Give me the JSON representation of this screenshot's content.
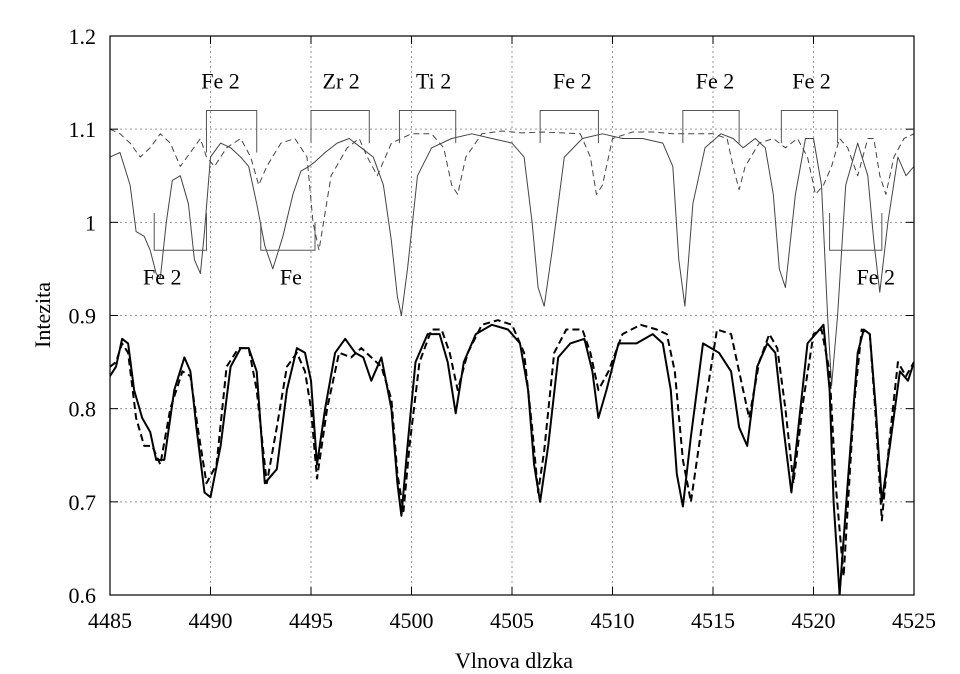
{
  "chart_data": {
    "type": "line",
    "title": "",
    "xlabel": "Vlnova dlzka",
    "ylabel": "Intezita",
    "xlim": [
      4485,
      4525
    ],
    "ylim": [
      0.6,
      1.2
    ],
    "xticks": [
      "4485",
      "4490",
      "4495",
      "4500",
      "4505",
      "4510",
      "4515",
      "4520",
      "4525"
    ],
    "yticks": [
      "0.6",
      "0.7",
      "0.8",
      "0.9",
      "1",
      "1.1",
      "1.2"
    ],
    "grid": true,
    "line_ids": [
      {
        "label": "Fe 2",
        "label_x": 4490.5,
        "label_y": 1.152,
        "from": 4489.8,
        "to": 4492.3,
        "bar_y": 1.12,
        "tick_to": 1.075
      },
      {
        "label": "Zr 2",
        "label_x": 4496.5,
        "label_y": 1.152,
        "from": 4495.0,
        "to": 4497.9,
        "bar_y": 1.12,
        "tick_to": 1.085
      },
      {
        "label": "Ti 2",
        "label_x": 4501.1,
        "label_y": 1.152,
        "from": 4499.4,
        "to": 4502.2,
        "bar_y": 1.12,
        "tick_to": 1.085
      },
      {
        "label": "Fe 2",
        "label_x": 4508.0,
        "label_y": 1.152,
        "from": 4506.4,
        "to": 4509.3,
        "bar_y": 1.12,
        "tick_to": 1.085
      },
      {
        "label": "Fe 2",
        "label_x": 4515.1,
        "label_y": 1.152,
        "from": 4513.5,
        "to": 4516.3,
        "bar_y": 1.12,
        "tick_to": 1.085
      },
      {
        "label": "Fe 2",
        "label_x": 4519.9,
        "label_y": 1.152,
        "from": 4518.4,
        "to": 4521.2,
        "bar_y": 1.12,
        "tick_to": 1.085
      },
      {
        "label": "Fe 2",
        "label_x": 4487.6,
        "label_y": 0.942,
        "from": 4487.2,
        "to": 4489.8,
        "bar_y": 0.97,
        "tick_to": 1.01,
        "below": true
      },
      {
        "label": "Fe",
        "label_x": 4494.0,
        "label_y": 0.942,
        "from": 4492.5,
        "to": 4495.2,
        "bar_y": 0.97,
        "tick_to": 1.0,
        "below": true
      },
      {
        "label": "Fe 2",
        "label_x": 4523.1,
        "label_y": 0.942,
        "from": 4520.8,
        "to": 4523.4,
        "bar_y": 0.97,
        "tick_to": 1.01,
        "below": true
      }
    ],
    "series": [
      {
        "style": "thin-solid",
        "color": "#444444",
        "x": [
          4485.0,
          4485.5,
          4486.0,
          4486.3,
          4486.7,
          4487.0,
          4487.3,
          4487.5,
          4487.8,
          4488.1,
          4488.5,
          4488.9,
          4489.2,
          4489.5,
          4489.7,
          4490.0,
          4490.5,
          4491.0,
          4491.5,
          4491.9,
          4492.3,
          4492.7,
          4493.1,
          4493.6,
          4494.1,
          4494.5,
          4494.9,
          4495.2,
          4495.7,
          4496.3,
          4496.9,
          4497.5,
          4498.1,
          4498.6,
          4499.0,
          4499.3,
          4499.5,
          4499.8,
          4500.3,
          4501.0,
          4502.0,
          4503.0,
          4504.0,
          4505.0,
          4505.6,
          4506.0,
          4506.3,
          4506.6,
          4507.0,
          4507.6,
          4508.5,
          4509.5,
          4510.5,
          4511.5,
          4512.5,
          4513.0,
          4513.3,
          4513.6,
          4514.0,
          4514.6,
          4515.4,
          4516.0,
          4516.5,
          4517.1,
          4517.6,
          4518.0,
          4518.3,
          4518.6,
          4519.1,
          4519.6,
          4520.0,
          4520.4,
          4520.7,
          4520.9,
          4521.2,
          4521.6,
          4522.2,
          4522.7,
          4523.0,
          4523.3,
          4523.7,
          4524.2,
          4524.6,
          4525.0
        ],
        "values": [
          1.07,
          1.075,
          1.04,
          0.99,
          0.985,
          0.97,
          0.945,
          0.94,
          1.0,
          1.045,
          1.05,
          1.02,
          0.96,
          0.945,
          0.99,
          1.07,
          1.085,
          1.08,
          1.07,
          1.06,
          1.02,
          0.975,
          0.95,
          0.985,
          1.03,
          1.055,
          1.06,
          1.065,
          1.075,
          1.085,
          1.09,
          1.08,
          1.07,
          1.04,
          0.98,
          0.92,
          0.9,
          0.95,
          1.05,
          1.08,
          1.09,
          1.095,
          1.09,
          1.085,
          1.07,
          1.0,
          0.93,
          0.91,
          0.97,
          1.07,
          1.09,
          1.095,
          1.09,
          1.09,
          1.085,
          1.06,
          0.96,
          0.91,
          1.02,
          1.08,
          1.095,
          1.09,
          1.08,
          1.09,
          1.08,
          1.03,
          0.95,
          0.93,
          1.03,
          1.09,
          1.09,
          1.04,
          0.9,
          0.825,
          0.9,
          1.04,
          1.085,
          1.05,
          0.98,
          0.925,
          1.0,
          1.07,
          1.05,
          1.06
        ]
      },
      {
        "style": "thin-dashed",
        "color": "#444444",
        "x": [
          4485.0,
          4485.5,
          4486.0,
          4486.5,
          4487.0,
          4487.5,
          4488.0,
          4488.5,
          4489.0,
          4489.5,
          4489.8,
          4490.2,
          4490.8,
          4491.5,
          4492.0,
          4492.4,
          4492.8,
          4493.5,
          4494.2,
          4494.8,
          4495.1,
          4495.4,
          4496.0,
          4496.8,
          4497.4,
          4497.8,
          4498.3,
          4499.0,
          4500.0,
          4501.0,
          4501.6,
          4502.0,
          4502.3,
          4502.7,
          4503.5,
          4504.5,
          4505.5,
          4506.5,
          4507.5,
          4508.4,
          4508.9,
          4509.2,
          4509.5,
          4510.0,
          4511.0,
          4512.0,
          4513.0,
          4514.0,
          4515.0,
          4515.7,
          4516.0,
          4516.3,
          4516.6,
          4517.3,
          4518.0,
          4518.6,
          4519.2,
          4519.7,
          4520.1,
          4520.5,
          4520.9,
          4521.3,
          4521.7,
          4522.2,
          4522.7,
          4523.0,
          4523.3,
          4523.6,
          4524.0,
          4524.5,
          4525.0
        ],
        "values": [
          1.1,
          1.095,
          1.085,
          1.07,
          1.08,
          1.095,
          1.085,
          1.06,
          1.075,
          1.09,
          1.07,
          1.06,
          1.08,
          1.09,
          1.07,
          1.04,
          1.06,
          1.085,
          1.09,
          1.07,
          1.0,
          0.97,
          1.05,
          1.08,
          1.09,
          1.07,
          1.05,
          1.085,
          1.095,
          1.095,
          1.08,
          1.04,
          1.03,
          1.07,
          1.095,
          1.098,
          1.096,
          1.097,
          1.096,
          1.095,
          1.07,
          1.03,
          1.04,
          1.09,
          1.097,
          1.097,
          1.095,
          1.095,
          1.095,
          1.09,
          1.06,
          1.035,
          1.06,
          1.085,
          1.09,
          1.08,
          1.09,
          1.07,
          1.03,
          1.04,
          1.06,
          1.09,
          1.08,
          1.05,
          1.09,
          1.09,
          1.05,
          1.03,
          1.07,
          1.09,
          1.095
        ]
      },
      {
        "style": "thick-solid",
        "color": "#000000",
        "x": [
          4485.0,
          4485.3,
          4485.6,
          4485.9,
          4486.2,
          4486.6,
          4487.0,
          4487.3,
          4487.7,
          4488.2,
          4488.7,
          4489.0,
          4489.3,
          4489.7,
          4490.0,
          4490.5,
          4491.0,
          4491.5,
          4491.9,
          4492.3,
          4492.7,
          4493.3,
          4493.8,
          4494.3,
          4494.7,
          4495.0,
          4495.3,
          4495.7,
          4496.2,
          4496.7,
          4497.2,
          4497.6,
          4498.0,
          4498.5,
          4499.0,
          4499.3,
          4499.5,
          4499.8,
          4500.2,
          4500.8,
          4501.4,
          4501.8,
          4502.2,
          4502.6,
          4503.2,
          4504.0,
          4504.8,
          4505.4,
          4505.8,
          4506.1,
          4506.4,
          4506.8,
          4507.3,
          4507.9,
          4508.6,
          4509.0,
          4509.3,
          4509.7,
          4510.3,
          4511.2,
          4512.0,
          4512.5,
          4512.9,
          4513.2,
          4513.5,
          4513.9,
          4514.5,
          4515.3,
          4515.9,
          4516.3,
          4516.7,
          4517.2,
          4517.7,
          4518.1,
          4518.5,
          4518.9,
          4519.3,
          4519.7,
          4520.1,
          4520.5,
          4520.8,
          4521.0,
          4521.3,
          4521.7,
          4522.2,
          4522.5,
          4522.8,
          4523.1,
          4523.4,
          4523.8,
          4524.3,
          4524.7,
          4525.0
        ],
        "values": [
          0.835,
          0.845,
          0.875,
          0.87,
          0.82,
          0.79,
          0.775,
          0.745,
          0.745,
          0.82,
          0.855,
          0.84,
          0.78,
          0.71,
          0.705,
          0.76,
          0.845,
          0.865,
          0.865,
          0.84,
          0.72,
          0.735,
          0.82,
          0.865,
          0.86,
          0.83,
          0.74,
          0.8,
          0.86,
          0.875,
          0.86,
          0.855,
          0.83,
          0.855,
          0.8,
          0.72,
          0.685,
          0.76,
          0.85,
          0.88,
          0.88,
          0.85,
          0.795,
          0.85,
          0.88,
          0.89,
          0.885,
          0.87,
          0.82,
          0.74,
          0.7,
          0.76,
          0.855,
          0.87,
          0.875,
          0.84,
          0.79,
          0.82,
          0.87,
          0.87,
          0.88,
          0.87,
          0.82,
          0.73,
          0.695,
          0.77,
          0.87,
          0.86,
          0.84,
          0.78,
          0.76,
          0.845,
          0.87,
          0.86,
          0.78,
          0.71,
          0.79,
          0.87,
          0.88,
          0.89,
          0.82,
          0.7,
          0.6,
          0.72,
          0.86,
          0.885,
          0.88,
          0.8,
          0.7,
          0.76,
          0.84,
          0.83,
          0.85
        ]
      },
      {
        "style": "thick-dashed",
        "color": "#000000",
        "x": [
          4485.0,
          4485.3,
          4485.6,
          4485.9,
          4486.3,
          4486.7,
          4487.1,
          4487.5,
          4488.0,
          4488.6,
          4489.0,
          4489.4,
          4489.8,
          4490.3,
          4490.8,
          4491.4,
          4491.9,
          4492.3,
          4492.8,
          4493.3,
          4493.8,
          4494.3,
          4494.7,
          4495.0,
          4495.3,
          4495.8,
          4496.4,
          4497.0,
          4497.5,
          4498.0,
          4498.5,
          4499.0,
          4499.3,
          4499.6,
          4499.9,
          4500.4,
          4501.0,
          4501.5,
          4501.9,
          4502.3,
          4502.8,
          4503.5,
          4504.3,
          4505.0,
          4505.6,
          4506.0,
          4506.3,
          4506.6,
          4507.1,
          4507.7,
          4508.5,
          4508.9,
          4509.3,
          4509.8,
          4510.5,
          4511.4,
          4512.2,
          4512.7,
          4513.1,
          4513.5,
          4513.9,
          4514.5,
          4515.2,
          4515.9,
          4516.3,
          4516.8,
          4517.3,
          4517.8,
          4518.2,
          4518.6,
          4519.0,
          4519.5,
          4520.0,
          4520.4,
          4520.8,
          4521.1,
          4521.5,
          4522.0,
          4522.4,
          4522.8,
          4523.1,
          4523.4,
          4523.8,
          4524.2,
          4524.6,
          4525.0
        ],
        "values": [
          0.845,
          0.85,
          0.87,
          0.86,
          0.79,
          0.76,
          0.76,
          0.74,
          0.8,
          0.84,
          0.835,
          0.775,
          0.72,
          0.74,
          0.845,
          0.865,
          0.865,
          0.82,
          0.72,
          0.78,
          0.845,
          0.86,
          0.84,
          0.8,
          0.725,
          0.8,
          0.86,
          0.855,
          0.865,
          0.855,
          0.845,
          0.81,
          0.73,
          0.69,
          0.76,
          0.85,
          0.885,
          0.885,
          0.86,
          0.82,
          0.86,
          0.89,
          0.895,
          0.89,
          0.86,
          0.78,
          0.71,
          0.755,
          0.86,
          0.885,
          0.885,
          0.86,
          0.82,
          0.84,
          0.88,
          0.89,
          0.885,
          0.88,
          0.84,
          0.745,
          0.7,
          0.79,
          0.885,
          0.88,
          0.84,
          0.79,
          0.85,
          0.88,
          0.865,
          0.8,
          0.72,
          0.81,
          0.88,
          0.885,
          0.84,
          0.72,
          0.62,
          0.8,
          0.885,
          0.88,
          0.79,
          0.68,
          0.77,
          0.85,
          0.835,
          0.85
        ]
      }
    ]
  }
}
